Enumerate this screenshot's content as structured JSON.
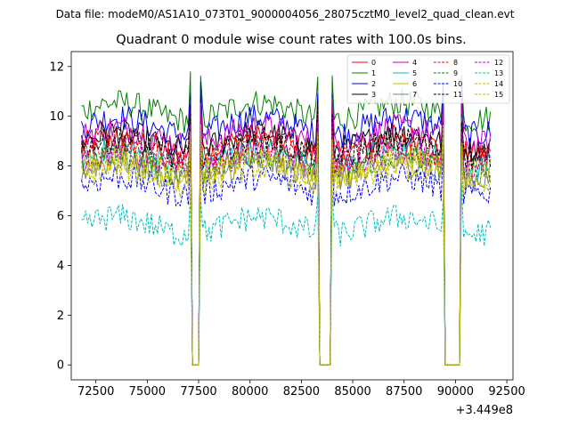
{
  "suptitle": "Data file: modeM0/AS1A10_073T01_9000004056_28075cztM0_level2_quad_clean.evt",
  "chart_data": {
    "type": "line",
    "title": "Quadrant 0 module wise count rates with 100.0s bins.",
    "xlabel": "",
    "ylabel": "",
    "x_offset_label": "+3.449e8",
    "xlim": [
      71300,
      92800
    ],
    "ylim": [
      -0.6,
      12.6
    ],
    "x_ticks": [
      72500,
      75000,
      77500,
      80000,
      82500,
      85000,
      87500,
      90000,
      92500
    ],
    "y_ticks": [
      0,
      2,
      4,
      6,
      8,
      10,
      12
    ],
    "bin_size_s": 100.0,
    "x_start": 71800,
    "x_end": 91700,
    "gaps": [
      [
        77200,
        77500
      ],
      [
        83400,
        83900
      ],
      [
        89500,
        90200
      ]
    ],
    "series": [
      {
        "name": "0",
        "color": "#ff0000",
        "dash": false,
        "level": 8.8
      },
      {
        "name": "1",
        "color": "#008000",
        "dash": false,
        "level": 10.2
      },
      {
        "name": "2",
        "color": "#0000ff",
        "dash": false,
        "level": 9.6
      },
      {
        "name": "3",
        "color": "#000000",
        "dash": false,
        "level": 9.0
      },
      {
        "name": "4",
        "color": "#bf00bf",
        "dash": false,
        "level": 9.2
      },
      {
        "name": "5",
        "color": "#00bfbf",
        "dash": false,
        "level": 8.3
      },
      {
        "name": "6",
        "color": "#bfbf00",
        "dash": false,
        "level": 8.0
      },
      {
        "name": "7",
        "color": "#808080",
        "dash": false,
        "level": 7.8
      },
      {
        "name": "8",
        "color": "#ff0000",
        "dash": true,
        "level": 8.5
      },
      {
        "name": "9",
        "color": "#008000",
        "dash": true,
        "level": 8.1
      },
      {
        "name": "10",
        "color": "#0000ff",
        "dash": true,
        "level": 7.2
      },
      {
        "name": "11",
        "color": "#000000",
        "dash": true,
        "level": 8.7
      },
      {
        "name": "12",
        "color": "#bf00bf",
        "dash": true,
        "level": 8.2
      },
      {
        "name": "13",
        "color": "#00bfbf",
        "dash": true,
        "level": 5.6
      },
      {
        "name": "14",
        "color": "#bfbf00",
        "dash": true,
        "level": 7.6
      },
      {
        "name": "15",
        "color": "#bfbf00",
        "dash": true,
        "level": 7.9
      }
    ]
  }
}
